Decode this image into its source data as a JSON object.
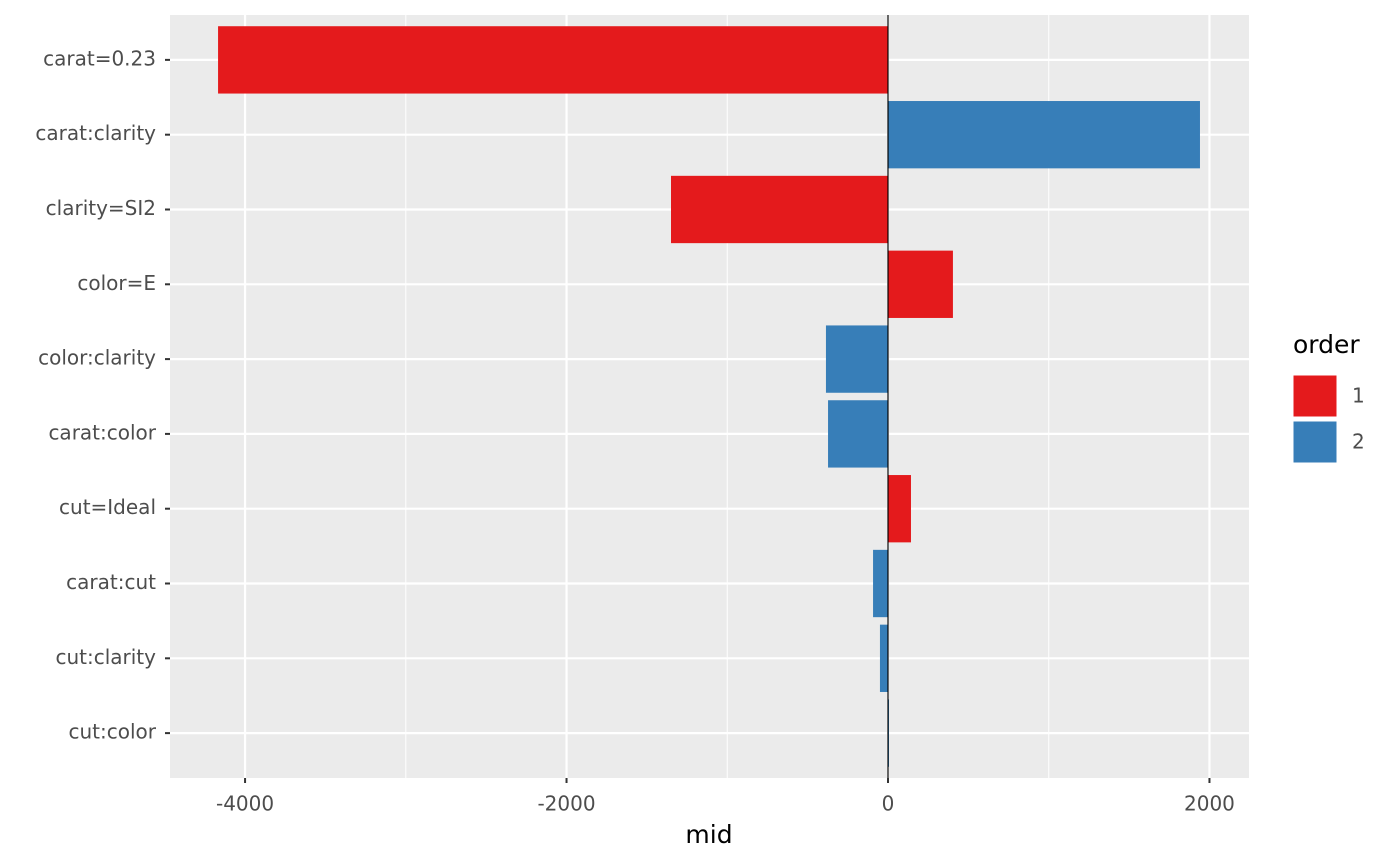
{
  "chart_data": {
    "type": "bar",
    "orientation": "horizontal",
    "x_label": "mid",
    "categories": [
      "carat=0.23",
      "carat:clarity",
      "clarity=SI2",
      "color=E",
      "color:clarity",
      "carat:color",
      "cut=Ideal",
      "carat:cut",
      "cut:clarity",
      "cut:color"
    ],
    "series": [
      {
        "name": "1",
        "color": "#E41A1C",
        "values": [
          -4168,
          null,
          -1350,
          404,
          null,
          null,
          143,
          null,
          null,
          null
        ]
      },
      {
        "name": "2",
        "color": "#377EB8",
        "values": [
          null,
          1941,
          null,
          null,
          -386,
          -373,
          null,
          -93,
          -50,
          5
        ]
      }
    ],
    "legend_title": "order",
    "legend_position": "right",
    "xlim": [
      -4467,
      2246
    ],
    "xticks": [
      -4000,
      -2000,
      0,
      2000
    ],
    "x_minor_grid": [
      -3000,
      -1000,
      1000
    ],
    "grid": true
  }
}
